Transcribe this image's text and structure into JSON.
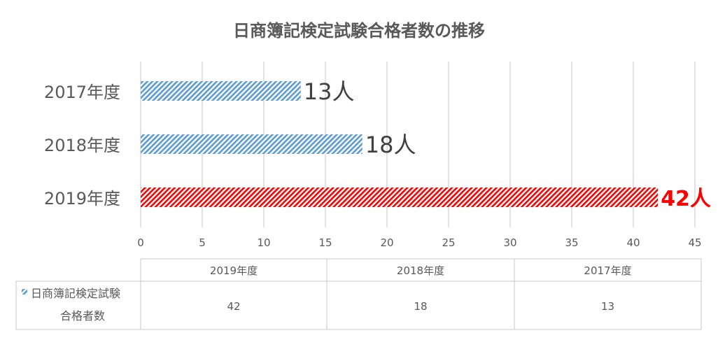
{
  "chart_data": {
    "type": "bar",
    "orientation": "horizontal",
    "title": "日商簿記検定試験合格者数の推移",
    "categories": [
      "2017年度",
      "2018年度",
      "2019年度"
    ],
    "series": [
      {
        "name": "日商簿記検定試験合格者数",
        "values": [
          13,
          18,
          42
        ]
      }
    ],
    "data_labels": [
      "13人",
      "18人",
      "42人"
    ],
    "highlight_index": 2,
    "xlim": [
      0,
      45
    ],
    "xticks": [
      0,
      5,
      10,
      15,
      20,
      25,
      30,
      35,
      40,
      45
    ],
    "grid": true,
    "colors": {
      "normal": "#5b9bd5",
      "highlight": "#ff0000",
      "grid": "#d9d9d9",
      "text": "#595959"
    },
    "data_table": {
      "headers": [
        "2019年度",
        "2018年度",
        "2017年度"
      ],
      "legend_label_line1": "日商簿記検定試験",
      "legend_label_line2": "合格者数",
      "values": [
        "42",
        "18",
        "13"
      ]
    }
  }
}
